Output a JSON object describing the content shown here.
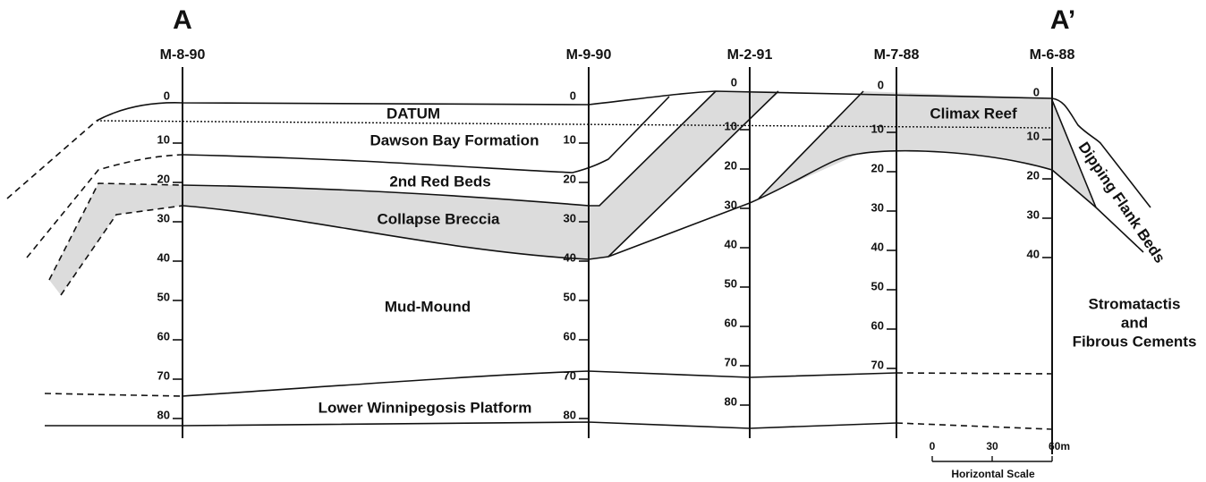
{
  "section": {
    "start": "A",
    "end": "A’"
  },
  "wells": [
    {
      "name": "M-8-90",
      "depths": [
        0,
        10,
        20,
        30,
        40,
        50,
        60,
        70,
        80
      ]
    },
    {
      "name": "M-9-90",
      "depths": [
        0,
        10,
        20,
        30,
        40,
        50,
        60,
        70,
        80
      ]
    },
    {
      "name": "M-2-91",
      "depths": [
        0,
        10,
        20,
        30,
        40,
        50,
        60,
        70,
        80
      ]
    },
    {
      "name": "M-7-88",
      "depths": [
        0,
        10,
        20,
        30,
        40,
        50,
        60,
        70
      ]
    },
    {
      "name": "M-6-88",
      "depths": [
        0,
        10,
        20,
        30,
        40
      ]
    }
  ],
  "units": [
    "DATUM",
    "Dawson Bay Formation",
    "2nd Red Beds",
    "Collapse Breccia",
    "Mud-Mound",
    "Lower Winnipegosis Platform",
    "Climax Reef",
    "Dipping Flank Beds",
    "Stromatactis",
    "and",
    "Fibrous Cements"
  ],
  "scale": {
    "ticks": [
      0,
      30,
      {
        "value": 60,
        "label": "60m"
      }
    ],
    "label": "Horizontal Scale"
  }
}
